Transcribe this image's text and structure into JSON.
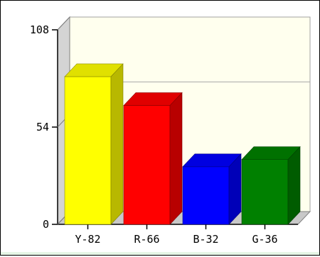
{
  "chart_data": {
    "type": "bar",
    "style": "3d",
    "categories": [
      "Y-82",
      "R-66",
      "B-32",
      "G-36"
    ],
    "values": [
      82,
      66,
      32,
      36
    ],
    "colors": [
      "#ffff00",
      "#ff0000",
      "#0000ff",
      "#008000"
    ],
    "ylim": [
      0,
      108
    ],
    "yticks": [
      "0",
      "54",
      "108"
    ],
    "reference_line": 72,
    "grid": false,
    "legend": "none",
    "title": "",
    "xlabel": "",
    "ylabel": "",
    "plot_background": "#ffffee"
  }
}
